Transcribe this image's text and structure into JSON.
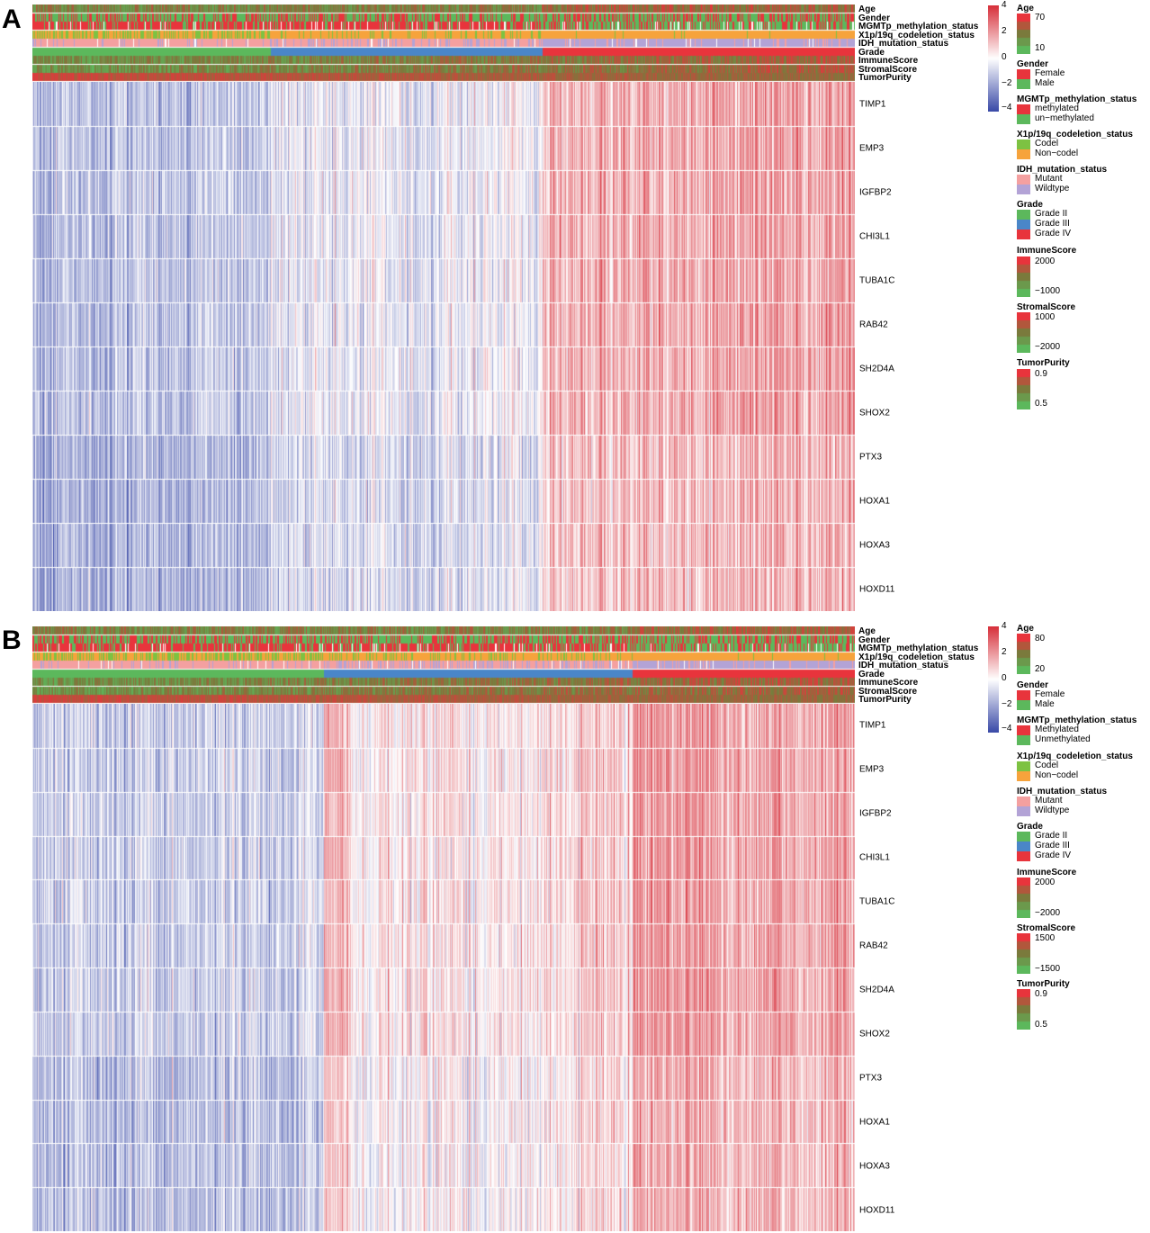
{
  "colors": {
    "expr_low": "#3b4ba8",
    "expr_mid": "#ffffff",
    "expr_high": "#d7303b",
    "green": "#5cb85c",
    "olive": "#7a7a3c",
    "red": "#e8343c",
    "codel": "#7dc242",
    "noncodel": "#f6a33c",
    "mutant": "#f4a0a0",
    "wildtype": "#b3a3d6",
    "grade2": "#5cb85c",
    "grade3": "#4a86c8",
    "grade4": "#e8343c"
  },
  "annotation_labels": [
    "Age",
    "Gender",
    "MGMTp_methylation_status",
    "X1p/19q_codeletion_status",
    "IDH_mutation_status",
    "Grade",
    "ImmuneScore",
    "StromalScore",
    "TumorPurity"
  ],
  "genes": [
    "TIMP1",
    "EMP3",
    "IGFBP2",
    "CHI3L1",
    "TUBA1C",
    "RAB42",
    "SH2D4A",
    "SHOX2",
    "PTX3",
    "HOXA1",
    "HOXA3",
    "HOXD11"
  ],
  "panels": [
    {
      "letter": "A",
      "expression_scale": {
        "ticks": [
          "4",
          "2",
          "0",
          "−2",
          "−4"
        ]
      },
      "legend": {
        "age": {
          "title": "Age",
          "high": "70",
          "low": "10"
        },
        "gender": {
          "title": "Gender",
          "items": [
            "Female",
            "Male"
          ]
        },
        "mgmt": {
          "title": "MGMTp_methylation_status",
          "items": [
            "methylated",
            "un−methylated"
          ]
        },
        "codeletion": {
          "title": "X1p/19q_codeletion_status",
          "items": [
            "Codel",
            "Non−codel"
          ]
        },
        "idh": {
          "title": "IDH_mutation_status",
          "items": [
            "Mutant",
            "Wildtype"
          ]
        },
        "grade": {
          "title": "Grade",
          "items": [
            "Grade II",
            "Grade III",
            "Grade IV"
          ]
        },
        "immune": {
          "title": "ImmuneScore",
          "high": "2000",
          "low": "−1000"
        },
        "stromal": {
          "title": "StromalScore",
          "high": "1000",
          "low": "−2000"
        },
        "purity": {
          "title": "TumorPurity",
          "high": "0.9",
          "low": "0.5"
        }
      }
    },
    {
      "letter": "B",
      "expression_scale": {
        "ticks": [
          "4",
          "2",
          "0",
          "−2",
          "−4"
        ]
      },
      "legend": {
        "age": {
          "title": "Age",
          "high": "80",
          "low": "20"
        },
        "gender": {
          "title": "Gender",
          "items": [
            "Female",
            "Male"
          ]
        },
        "mgmt": {
          "title": "MGMTp_methylation_status",
          "items": [
            "Methylated",
            "Unmethylated"
          ]
        },
        "codeletion": {
          "title": "X1p/19q_codeletion_status",
          "items": [
            "Codel",
            "Non−codel"
          ]
        },
        "idh": {
          "title": "IDH_mutation_status",
          "items": [
            "Mutant",
            "Wildtype"
          ]
        },
        "grade": {
          "title": "Grade",
          "items": [
            "Grade II",
            "Grade III",
            "Grade IV"
          ]
        },
        "immune": {
          "title": "ImmuneScore",
          "high": "2000",
          "low": "−2000"
        },
        "stromal": {
          "title": "StromalScore",
          "high": "1500",
          "low": "−1500"
        },
        "purity": {
          "title": "TumorPurity",
          "high": "0.9",
          "low": "0.5"
        }
      }
    }
  ],
  "chart_data": [
    {
      "type": "heatmap",
      "title": "A",
      "rows": [
        "TIMP1",
        "EMP3",
        "IGFBP2",
        "CHI3L1",
        "TUBA1C",
        "RAB42",
        "SH2D4A",
        "SHOX2",
        "PTX3",
        "HOXA1",
        "HOXA3",
        "HOXD11"
      ],
      "value_range": [
        -4,
        4
      ],
      "grade_order": [
        "Grade II",
        "Grade III",
        "Grade IV"
      ],
      "grade_fractions": [
        0.29,
        0.33,
        0.38
      ],
      "mean_expression_by_grade": [
        -0.8,
        -0.4,
        1.0
      ]
    },
    {
      "type": "heatmap",
      "title": "B",
      "rows": [
        "TIMP1",
        "EMP3",
        "IGFBP2",
        "CHI3L1",
        "TUBA1C",
        "RAB42",
        "SH2D4A",
        "SHOX2",
        "PTX3",
        "HOXA1",
        "HOXA3",
        "HOXD11"
      ],
      "value_range": [
        -4,
        4
      ],
      "grade_order": [
        "Grade II",
        "Grade III",
        "Grade IV"
      ],
      "grade_fractions": [
        0.355,
        0.375,
        0.27
      ],
      "mean_expression_by_grade": [
        -1.0,
        0.3,
        1.4
      ]
    }
  ]
}
